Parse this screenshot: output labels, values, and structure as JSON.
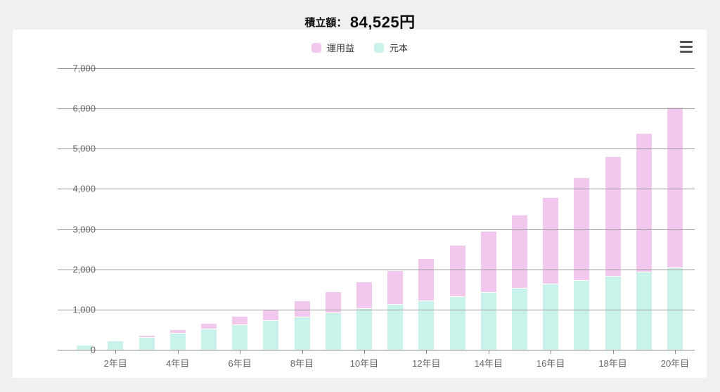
{
  "header": {
    "title_label": "積立額：",
    "title_value": "84,525円"
  },
  "legend": {
    "items": [
      {
        "label": "運用益",
        "color": "#F2C9EE"
      },
      {
        "label": "元本",
        "color": "#C9F2EB"
      }
    ]
  },
  "menu": {
    "icon": "hamburger-menu-icon"
  },
  "chart_data": {
    "type": "bar",
    "stacked": true,
    "title": "積立額： 84,525円",
    "categories": [
      "1年目",
      "2年目",
      "3年目",
      "4年目",
      "5年目",
      "6年目",
      "7年目",
      "8年目",
      "9年目",
      "10年目",
      "11年目",
      "12年目",
      "13年目",
      "14年目",
      "15年目",
      "16年目",
      "17年目",
      "18年目",
      "19年目",
      "20年目"
    ],
    "x_tick_labels": [
      "2年目",
      "4年目",
      "6年目",
      "8年目",
      "10年目",
      "12年目",
      "14年目",
      "16年目",
      "18年目",
      "20年目"
    ],
    "series": [
      {
        "name": "元本",
        "color": "#C9F2EB",
        "values": [
          101,
          203,
          304,
          406,
          507,
          609,
          710,
          811,
          913,
          1014,
          1116,
          1217,
          1319,
          1420,
          1521,
          1623,
          1724,
          1826,
          1927,
          2029
        ]
      },
      {
        "name": "運用益",
        "color": "#F2C9EE",
        "values": [
          5,
          20,
          46,
          85,
          139,
          207,
          293,
          397,
          522,
          669,
          840,
          1039,
          1267,
          1529,
          1826,
          2162,
          2543,
          2971,
          3451,
          3990
        ]
      }
    ],
    "totals": [
      106,
      223,
      350,
      491,
      646,
      816,
      1003,
      1208,
      1435,
      1683,
      1956,
      2256,
      2586,
      2949,
      3347,
      3785,
      4267,
      4797,
      5378,
      6019
    ],
    "ylim": [
      0,
      7000
    ],
    "y_ticks": [
      0,
      1000,
      2000,
      3000,
      4000,
      5000,
      6000,
      7000
    ],
    "y_tick_labels": [
      "0",
      "1,000",
      "2,000",
      "3,000",
      "4,000",
      "5,000",
      "6,000",
      "7,000"
    ],
    "grid": true,
    "legend_position": "top",
    "colors": {
      "gains": "#F2C9EE",
      "principal": "#C9F2EB",
      "gridline": "#999999",
      "axis_text": "#666666"
    }
  }
}
